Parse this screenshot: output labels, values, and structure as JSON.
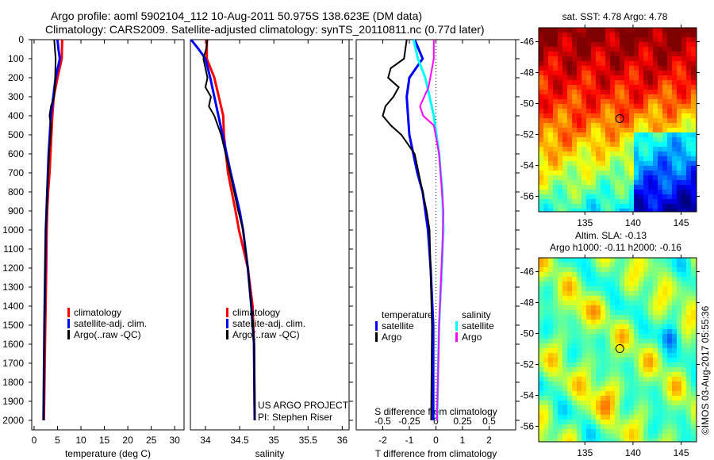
{
  "title": {
    "line1": "Argo profile: aoml 5902104_112 10-Aug-2011 50.975S 138.623E (DM data)",
    "line2": "Climatology: CARS2009. Satellite-adjusted climatology: synTS_20110811.nc (0.77d later)"
  },
  "colors": {
    "clim": "#ff0000",
    "sat": "#0000ff",
    "argo": "#000000",
    "sat_s": "#00ffff",
    "argo_s": "#ff00ff"
  },
  "chart_data": [
    {
      "type": "line",
      "id": "temp",
      "xlabel": "temperature (deg C)",
      "ylabel": "",
      "xlim": [
        -0.5,
        32
      ],
      "ylim": [
        2050,
        0
      ],
      "xticks": [
        0,
        5,
        10,
        15,
        20,
        25,
        30
      ],
      "yticks": [
        0,
        100,
        200,
        300,
        400,
        500,
        600,
        700,
        800,
        900,
        1000,
        1100,
        1200,
        1300,
        1400,
        1500,
        1600,
        1700,
        1800,
        1900,
        2000
      ],
      "legend": [
        "climatology",
        "satellite-adj. clim.",
        "Argo(..raw -QC)"
      ],
      "series": [
        {
          "name": "climatology",
          "color": "clim",
          "depth": [
            0,
            100,
            200,
            300,
            400,
            500,
            600,
            700,
            800,
            900,
            1000,
            1200,
            1500,
            2000
          ],
          "values": [
            6.0,
            5.9,
            5.0,
            4.2,
            3.9,
            3.7,
            3.5,
            3.3,
            3.0,
            2.8,
            2.7,
            2.6,
            2.4,
            2.1
          ]
        },
        {
          "name": "satellite-adj. clim.",
          "color": "sat",
          "depth": [
            0,
            50,
            100,
            200,
            400,
            600,
            800,
            1000,
            1500,
            2000
          ],
          "values": [
            5.0,
            5.2,
            5.5,
            4.6,
            3.6,
            3.1,
            2.8,
            2.5,
            2.2,
            2.0
          ]
        },
        {
          "name": "Argo(..raw -QC)",
          "color": "argo",
          "depth": [
            0,
            100,
            200,
            300,
            350,
            400,
            450,
            500,
            600,
            800,
            1000,
            1500,
            2000
          ],
          "values": [
            4.3,
            4.6,
            4.5,
            4.3,
            3.6,
            3.3,
            3.6,
            3.5,
            3.2,
            2.8,
            2.5,
            2.2,
            2.0
          ]
        }
      ]
    },
    {
      "type": "line",
      "id": "sal",
      "xlabel": "salinity",
      "xlim": [
        33.78,
        36.1
      ],
      "ylim": [
        2050,
        0
      ],
      "xticks": [
        34,
        34.5,
        35,
        35.5,
        36
      ],
      "legend": [
        "climatology",
        "satellite-adj. clim.",
        "Argo(..raw -QC)"
      ],
      "annotation": [
        "US ARGO PROJECT",
        "PI: Stephen Riser"
      ],
      "series": [
        {
          "name": "climatology",
          "color": "clim",
          "depth": [
            0,
            100,
            200,
            400,
            500,
            700,
            900,
            1000,
            1200,
            1400,
            1600,
            2000
          ],
          "values": [
            34.02,
            34.02,
            34.13,
            34.26,
            34.27,
            34.33,
            34.44,
            34.49,
            34.62,
            34.69,
            34.71,
            34.72
          ]
        },
        {
          "name": "satellite-adj. clim.",
          "color": "sat",
          "depth": [
            0,
            50,
            100,
            200,
            400,
            500,
            700,
            900,
            1000,
            1200,
            1400,
            1600,
            2000
          ],
          "values": [
            33.79,
            33.9,
            34.0,
            34.07,
            34.19,
            34.25,
            34.37,
            34.5,
            34.55,
            34.62,
            34.67,
            34.71,
            34.72
          ]
        },
        {
          "name": "Argo(..raw -QC)",
          "color": "argo",
          "depth": [
            0,
            50,
            100,
            200,
            250,
            300,
            350,
            400,
            500,
            700,
            900,
            1000,
            1200,
            1400,
            1600,
            2000
          ],
          "values": [
            34.03,
            34.01,
            33.97,
            34.03,
            34.0,
            34.08,
            34.05,
            34.13,
            34.23,
            34.36,
            34.48,
            34.55,
            34.62,
            34.67,
            34.71,
            34.72
          ]
        }
      ]
    },
    {
      "type": "line",
      "id": "diff",
      "xlabel": "T difference from climatology",
      "x2label": "S difference from climatology",
      "xlim": [
        -3,
        3
      ],
      "ylim": [
        2050,
        0
      ],
      "xticks": [
        -2,
        -1,
        0,
        1,
        2
      ],
      "x2ticks": [
        "-0.5",
        "-0.25",
        "0",
        "0.25",
        "0.5"
      ],
      "legend_t": {
        "title": "temperature",
        "items": [
          "satellite",
          "Argo"
        ]
      },
      "legend_s": {
        "title": "salinity",
        "items": [
          "satellite",
          "Argo"
        ]
      },
      "series": [
        {
          "name": "T satellite",
          "color": "sat",
          "scale": 1,
          "depth": [
            0,
            100,
            200,
            300,
            500,
            700,
            800,
            1000,
            1200,
            1500,
            2000
          ],
          "values": [
            -0.8,
            -0.5,
            -1.0,
            -1.1,
            -1.0,
            -0.7,
            -0.5,
            -0.3,
            -0.2,
            -0.1,
            -0.1
          ]
        },
        {
          "name": "T Argo",
          "color": "argo",
          "scale": 1,
          "depth": [
            0,
            100,
            150,
            200,
            250,
            300,
            350,
            400,
            450,
            500,
            600,
            800,
            900,
            1000,
            1500,
            2000
          ],
          "values": [
            -1.1,
            -1.2,
            -1.7,
            -1.8,
            -1.4,
            -1.6,
            -1.9,
            -2.0,
            -1.7,
            -1.3,
            -0.8,
            -0.5,
            -0.35,
            -0.24,
            -0.15,
            -0.18
          ]
        },
        {
          "name": "S satellite",
          "color": "sat_s",
          "scale": 4,
          "depth": [
            0,
            100,
            200,
            400,
            600,
            800,
            1000,
            1500,
            2000
          ],
          "values": [
            -0.21,
            -0.17,
            -0.1,
            -0.02,
            0.03,
            0.06,
            0.07,
            0.03,
            0.01
          ]
        },
        {
          "name": "S Argo",
          "color": "argo_s",
          "scale": 4,
          "depth": [
            0,
            100,
            250,
            350,
            400,
            450,
            600,
            900,
            1100,
            1500,
            2000
          ],
          "values": [
            -0.02,
            -0.02,
            -0.07,
            -0.15,
            -0.12,
            -0.02,
            0.03,
            0.07,
            0.06,
            0.03,
            0.01
          ]
        }
      ]
    },
    {
      "type": "heatmap",
      "id": "sst",
      "title": "sat. SST: 4.78 Argo: 4.78",
      "xlim": [
        130.2,
        146.6
      ],
      "ylim": [
        -57.0,
        -45.1
      ],
      "xticks": [
        135,
        140,
        145
      ],
      "yticks": [
        -46,
        -48,
        -50,
        -52,
        -54,
        -56
      ],
      "marker": {
        "lon": 138.623,
        "lat": -50.975
      }
    },
    {
      "type": "heatmap",
      "id": "sla",
      "title": "Altim. SLA: -0.13",
      "subtitle": "Argo h1000: -0.11 h2000: -0.16",
      "xlim": [
        130.2,
        146.6
      ],
      "ylim": [
        -57.0,
        -45.1
      ],
      "xticks": [
        135,
        140,
        145
      ],
      "yticks": [
        -46,
        -48,
        -50,
        -52,
        -54,
        -56
      ],
      "marker": {
        "lon": 138.623,
        "lat": -50.975
      },
      "credit": "©IMOS 03-Aug-2017 05:55:36"
    }
  ]
}
